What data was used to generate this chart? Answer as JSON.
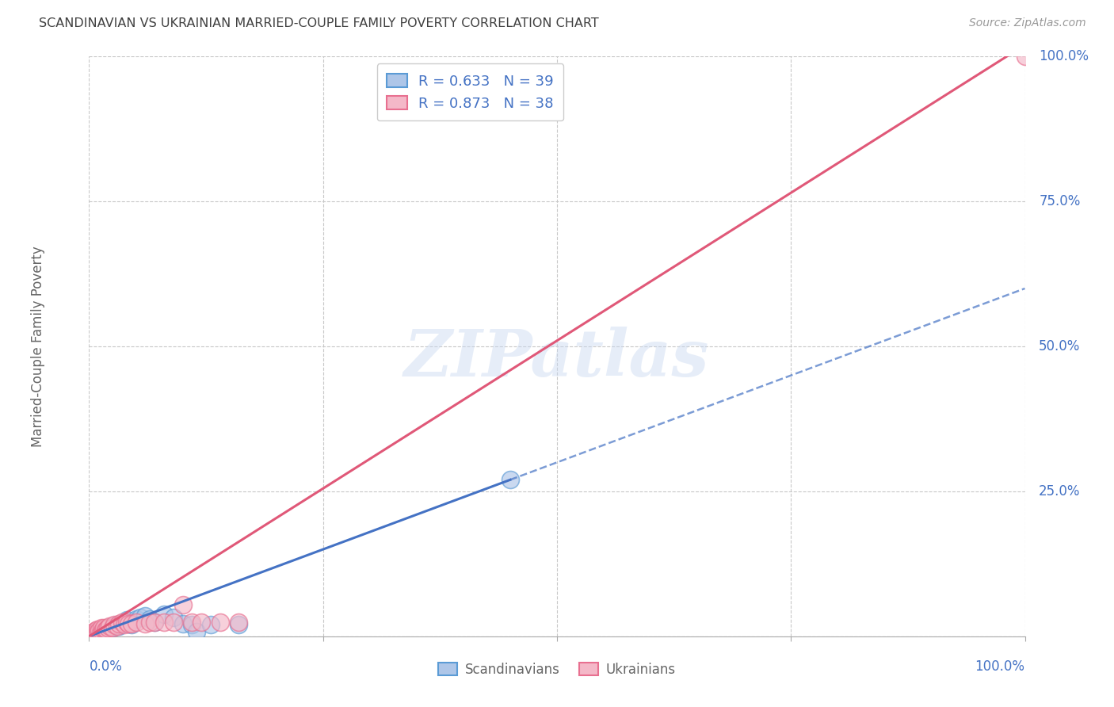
{
  "title": "SCANDINAVIAN VS UKRAINIAN MARRIED-COUPLE FAMILY POVERTY CORRELATION CHART",
  "source": "Source: ZipAtlas.com",
  "ylabel": "Married-Couple Family Poverty",
  "ytick_labels": [
    "0.0%",
    "25.0%",
    "50.0%",
    "75.0%",
    "100.0%"
  ],
  "ytick_values": [
    0.0,
    0.25,
    0.5,
    0.75,
    1.0
  ],
  "watermark": "ZIPatlas",
  "legend_scand_R": 0.633,
  "legend_scand_N": 39,
  "legend_ukr_R": 0.873,
  "legend_ukr_N": 38,
  "scand_fill_color": "#aec6e8",
  "ukr_fill_color": "#f4b8c8",
  "scand_edge_color": "#5b9bd5",
  "ukr_edge_color": "#e87090",
  "scand_line_color": "#4472c4",
  "ukr_line_color": "#e05878",
  "background_color": "#ffffff",
  "grid_color": "#c8c8c8",
  "title_color": "#404040",
  "axis_label_color": "#4472c4",
  "label_gray": "#666666",
  "scand_points": [
    [
      0.003,
      0.003
    ],
    [
      0.005,
      0.005
    ],
    [
      0.006,
      0.004
    ],
    [
      0.007,
      0.006
    ],
    [
      0.008,
      0.003
    ],
    [
      0.009,
      0.007
    ],
    [
      0.01,
      0.005
    ],
    [
      0.011,
      0.008
    ],
    [
      0.012,
      0.006
    ],
    [
      0.013,
      0.01
    ],
    [
      0.014,
      0.009
    ],
    [
      0.015,
      0.008
    ],
    [
      0.016,
      0.01
    ],
    [
      0.017,
      0.007
    ],
    [
      0.018,
      0.012
    ],
    [
      0.02,
      0.015
    ],
    [
      0.022,
      0.013
    ],
    [
      0.025,
      0.018
    ],
    [
      0.027,
      0.016
    ],
    [
      0.03,
      0.02
    ],
    [
      0.032,
      0.018
    ],
    [
      0.035,
      0.022
    ],
    [
      0.038,
      0.025
    ],
    [
      0.04,
      0.028
    ],
    [
      0.042,
      0.022
    ],
    [
      0.045,
      0.02
    ],
    [
      0.05,
      0.03
    ],
    [
      0.055,
      0.033
    ],
    [
      0.06,
      0.035
    ],
    [
      0.065,
      0.03
    ],
    [
      0.07,
      0.025
    ],
    [
      0.08,
      0.038
    ],
    [
      0.09,
      0.033
    ],
    [
      0.1,
      0.022
    ],
    [
      0.11,
      0.02
    ],
    [
      0.115,
      0.008
    ],
    [
      0.13,
      0.02
    ],
    [
      0.16,
      0.02
    ],
    [
      0.45,
      0.27
    ]
  ],
  "ukr_points": [
    [
      0.003,
      0.003
    ],
    [
      0.005,
      0.008
    ],
    [
      0.006,
      0.005
    ],
    [
      0.007,
      0.01
    ],
    [
      0.008,
      0.007
    ],
    [
      0.009,
      0.012
    ],
    [
      0.01,
      0.008
    ],
    [
      0.011,
      0.01
    ],
    [
      0.012,
      0.006
    ],
    [
      0.013,
      0.015
    ],
    [
      0.014,
      0.008
    ],
    [
      0.015,
      0.012
    ],
    [
      0.016,
      0.015
    ],
    [
      0.017,
      0.01
    ],
    [
      0.018,
      0.012
    ],
    [
      0.02,
      0.015
    ],
    [
      0.022,
      0.018
    ],
    [
      0.025,
      0.015
    ],
    [
      0.027,
      0.02
    ],
    [
      0.03,
      0.018
    ],
    [
      0.032,
      0.022
    ],
    [
      0.035,
      0.025
    ],
    [
      0.038,
      0.02
    ],
    [
      0.04,
      0.025
    ],
    [
      0.042,
      0.022
    ],
    [
      0.045,
      0.022
    ],
    [
      0.05,
      0.025
    ],
    [
      0.06,
      0.022
    ],
    [
      0.065,
      0.025
    ],
    [
      0.07,
      0.025
    ],
    [
      0.08,
      0.025
    ],
    [
      0.09,
      0.025
    ],
    [
      0.1,
      0.055
    ],
    [
      0.11,
      0.025
    ],
    [
      0.12,
      0.025
    ],
    [
      0.14,
      0.025
    ],
    [
      0.16,
      0.025
    ],
    [
      1.0,
      1.0
    ]
  ],
  "scand_regr_solid": [
    0.0,
    0.0,
    0.45,
    0.27
  ],
  "scand_regr_dashed": [
    0.45,
    0.27,
    1.0,
    0.6
  ],
  "ukr_regr_solid": [
    0.0,
    0.0,
    1.0,
    1.02
  ]
}
